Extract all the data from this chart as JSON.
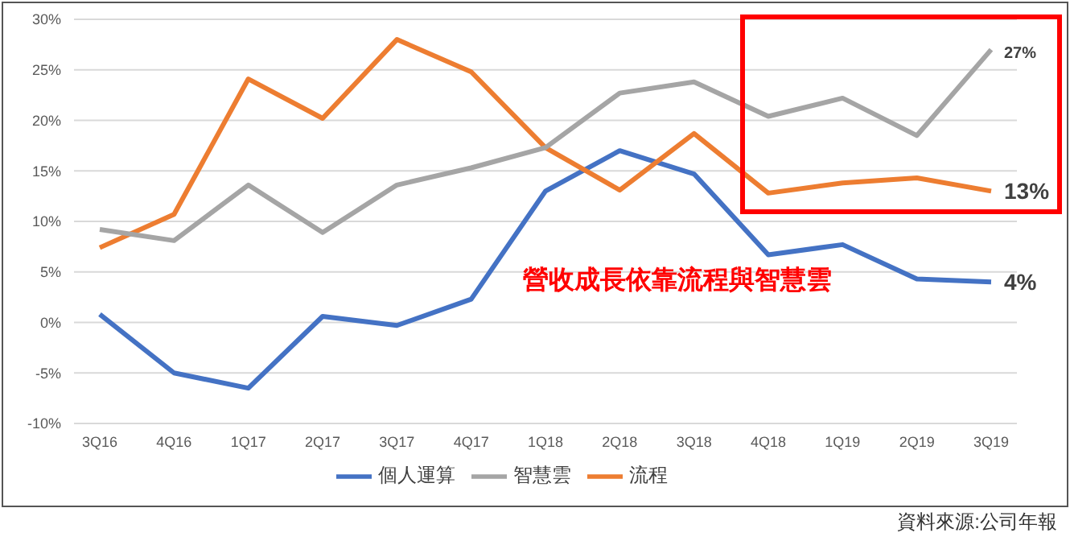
{
  "chart_data": {
    "type": "line",
    "categories": [
      "3Q16",
      "4Q16",
      "1Q17",
      "2Q17",
      "3Q17",
      "4Q17",
      "1Q18",
      "2Q18",
      "3Q18",
      "4Q18",
      "1Q19",
      "2Q19",
      "3Q19"
    ],
    "series": [
      {
        "name": "個人運算",
        "color": "#4472c4",
        "values": [
          0.8,
          -5,
          -6.5,
          0.6,
          -0.3,
          2.3,
          13,
          17,
          14.7,
          6.7,
          7.7,
          4.3,
          4
        ],
        "value_labels": [
          null,
          null,
          null,
          null,
          null,
          null,
          null,
          null,
          null,
          null,
          null,
          null,
          "4%"
        ]
      },
      {
        "name": "流程",
        "color": "#ed7d31",
        "values": [
          7.4,
          10.7,
          24.1,
          20.2,
          28,
          24.8,
          17.3,
          13.1,
          18.7,
          12.8,
          13.8,
          14.3,
          13
        ],
        "value_labels": [
          null,
          null,
          null,
          null,
          null,
          null,
          null,
          null,
          null,
          null,
          null,
          null,
          "13%"
        ]
      },
      {
        "name": "智慧雲",
        "color": "#a5a5a5",
        "values": [
          9.2,
          8.1,
          13.6,
          8.9,
          13.6,
          15.3,
          17.3,
          22.7,
          23.8,
          20.4,
          22.2,
          18.5,
          27
        ],
        "value_labels": [
          null,
          null,
          null,
          null,
          null,
          null,
          null,
          null,
          null,
          null,
          null,
          null,
          "27%"
        ]
      }
    ],
    "ylim": [
      -10,
      30
    ],
    "yticks": [
      {
        "value": -10,
        "label": "-10%"
      },
      {
        "value": -5,
        "label": "-5%"
      },
      {
        "value": 0,
        "label": "0%"
      },
      {
        "value": 5,
        "label": "5%"
      },
      {
        "value": 10,
        "label": "10%"
      },
      {
        "value": 15,
        "label": "15%"
      },
      {
        "value": 20,
        "label": "20%"
      },
      {
        "value": 25,
        "label": "25%"
      },
      {
        "value": 30,
        "label": "30%"
      }
    ],
    "grid": "y",
    "legend": "bottom",
    "marker": "none",
    "line_style": "solid",
    "annotations": [
      "營收成長依靠流程與智慧雲",
      "資料來源:公司年報"
    ]
  }
}
